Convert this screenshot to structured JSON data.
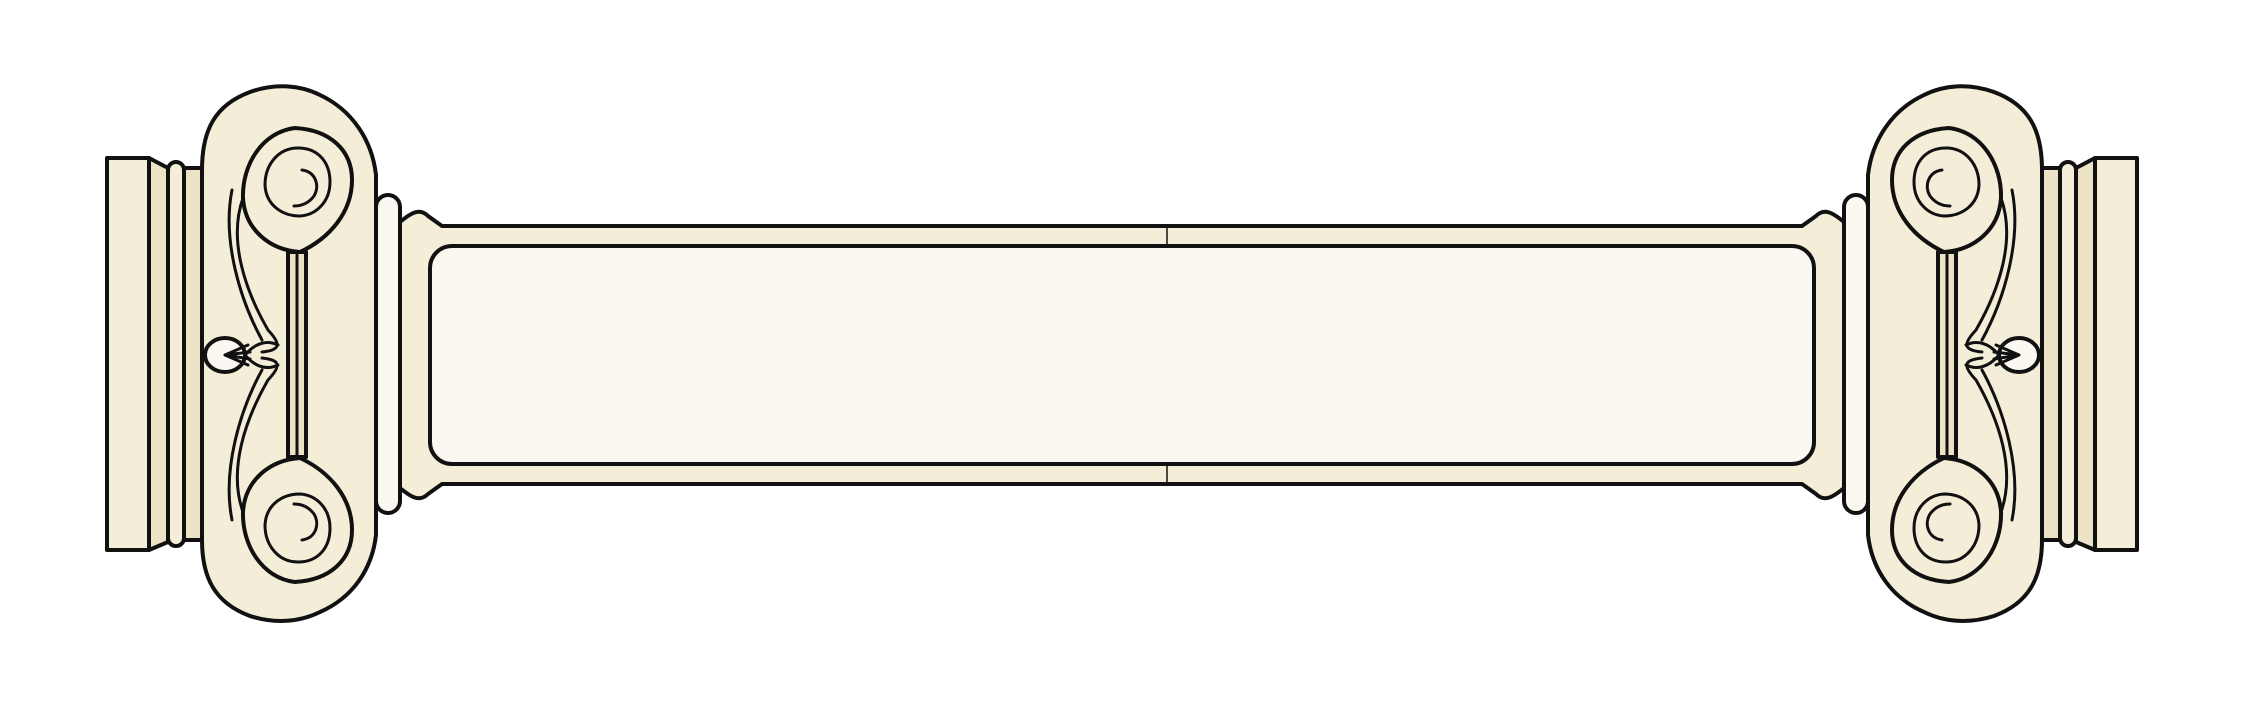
{
  "banner": {
    "text": "",
    "colors": {
      "outline": "#111111",
      "cream": "#f4eed9",
      "cream_dark": "#ece3c7",
      "panel": "#faf8f0",
      "background": "#ffffff"
    },
    "icons": {
      "left_ornament": "ionic-capital-icon",
      "right_ornament": "ionic-capital-icon"
    }
  }
}
